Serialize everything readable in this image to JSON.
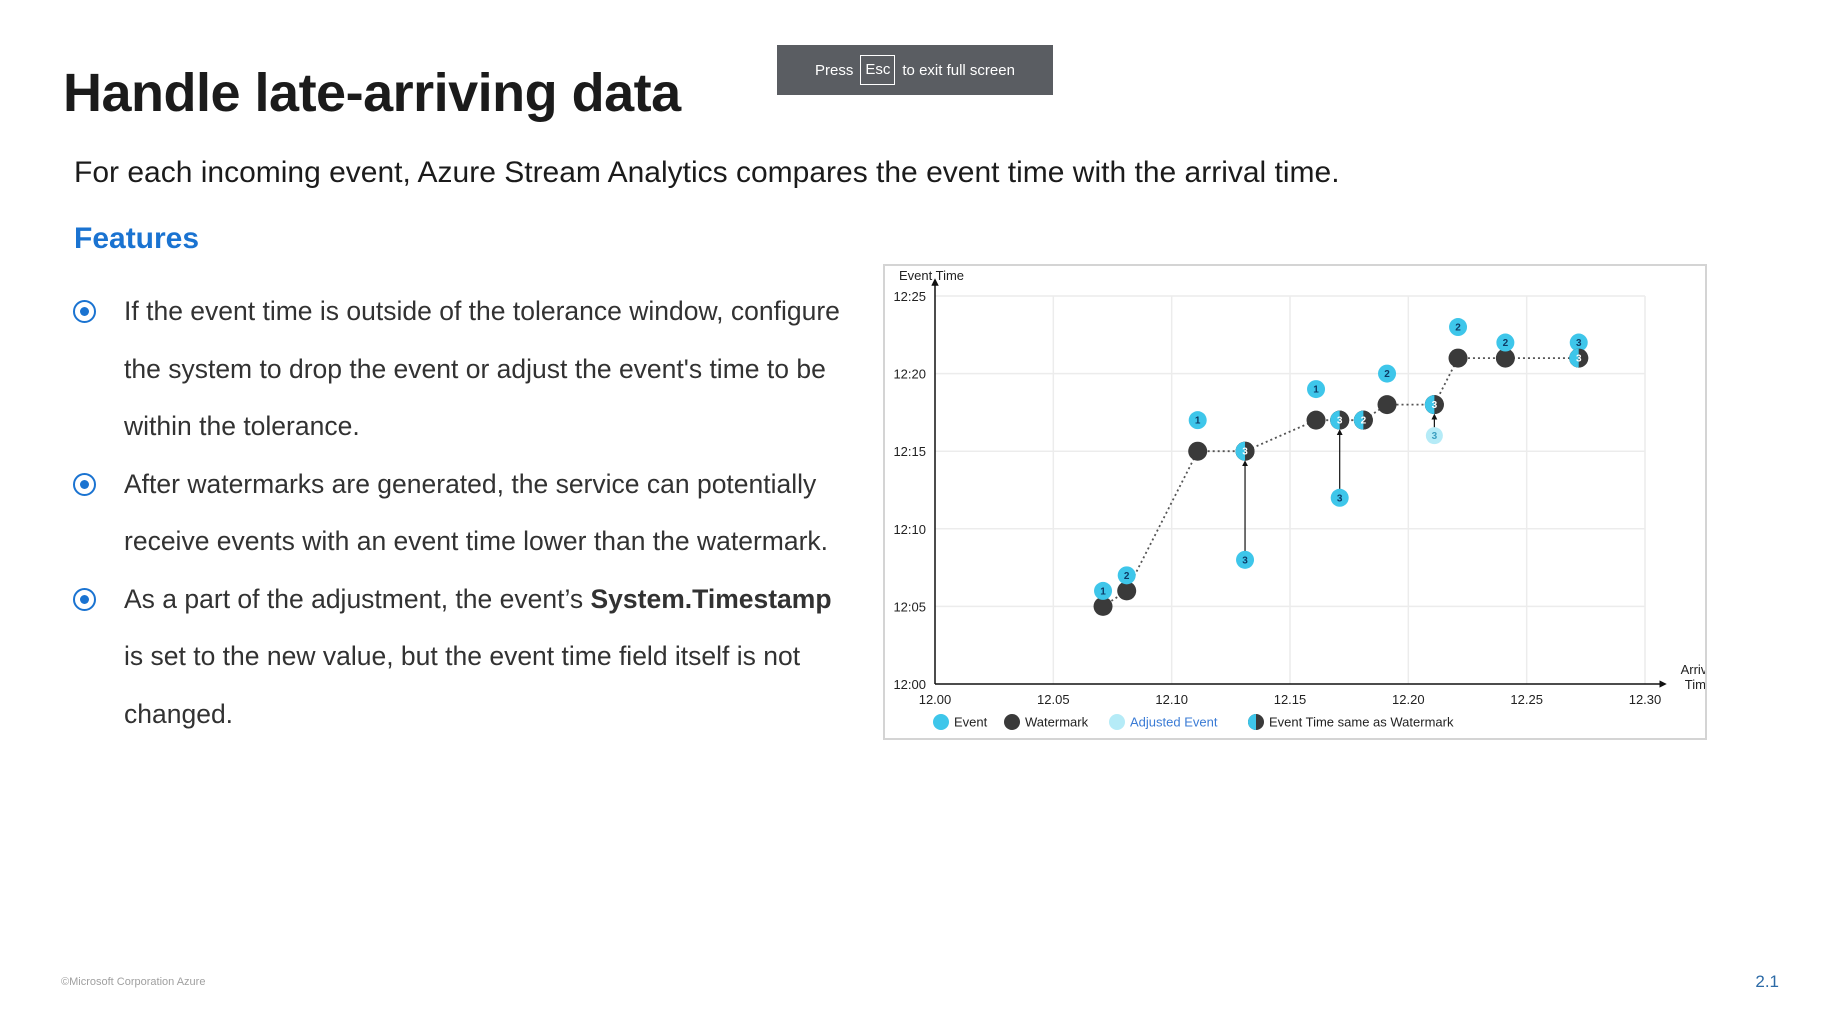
{
  "slide": {
    "title": "Handle late-arriving data",
    "subtitle": "For each incoming event, Azure Stream Analytics compares the event time with the arrival time.",
    "section_heading": "Features",
    "bullets": [
      {
        "text": "If the event time is outside of the tolerance window, configure the system to drop the event or adjust the event's time to be within the tolerance."
      },
      {
        "text": "After watermarks are generated, the service can potentially receive events with an event time lower than the watermark."
      },
      {
        "pre": "As a part of the adjustment, the event’s ",
        "bold": "System.Timestamp",
        "post": " is set to the new value, but the event time field itself is not changed."
      }
    ],
    "footer": "©Microsoft Corporation Azure",
    "page_number": "2.1"
  },
  "toast": {
    "press": "Press",
    "key": "Esc",
    "message": "to exit full screen"
  },
  "colors": {
    "accent": "#1a73d1",
    "event": "#3ec6ea",
    "watermark": "#3a3a3a",
    "adjusted_event": "#b5ebf7",
    "toast_bg": "#5a5d62"
  },
  "chart_data": {
    "type": "scatter",
    "xlabel": "Arrival Time",
    "ylabel": "Event Time",
    "x_ticks": [
      "12.00",
      "12.05",
      "12.10",
      "12.15",
      "12.20",
      "12.25",
      "12.30"
    ],
    "y_ticks": [
      "12:00",
      "12:05",
      "12:10",
      "12:15",
      "12:20",
      "12:25"
    ],
    "xlim": [
      0,
      30
    ],
    "ylim": [
      0,
      25
    ],
    "grid": true,
    "legend": [
      "Event",
      "Watermark",
      "Adjusted Event",
      "Event Time same as Watermark"
    ],
    "legend_position": "bottom",
    "series": [
      {
        "name": "Watermark",
        "points": [
          {
            "x": 7.1,
            "y": 5.0
          },
          {
            "x": 8.1,
            "y": 6.0
          },
          {
            "x": 11.1,
            "y": 15.0
          },
          {
            "x": 13.1,
            "y": 15.0
          },
          {
            "x": 16.1,
            "y": 17.0
          },
          {
            "x": 17.1,
            "y": 17.0
          },
          {
            "x": 18.1,
            "y": 17.0
          },
          {
            "x": 19.1,
            "y": 18.0
          },
          {
            "x": 21.1,
            "y": 18.0
          },
          {
            "x": 22.1,
            "y": 21.0
          },
          {
            "x": 24.1,
            "y": 21.0
          },
          {
            "x": 27.2,
            "y": 21.0
          }
        ]
      },
      {
        "name": "Event",
        "points": [
          {
            "x": 7.1,
            "y": 6.0,
            "label": "1"
          },
          {
            "x": 8.1,
            "y": 7.0,
            "label": "2"
          },
          {
            "x": 11.1,
            "y": 17.0,
            "label": "1"
          },
          {
            "x": 13.1,
            "y": 8.0,
            "label": "3"
          },
          {
            "x": 16.1,
            "y": 19.0,
            "label": "1"
          },
          {
            "x": 19.1,
            "y": 20.0,
            "label": "2"
          },
          {
            "x": 17.1,
            "y": 12.0,
            "label": "3"
          },
          {
            "x": 22.1,
            "y": 23.0,
            "label": "2"
          },
          {
            "x": 24.1,
            "y": 22.0,
            "label": "2"
          },
          {
            "x": 27.2,
            "y": 22.0,
            "label": "3"
          }
        ]
      },
      {
        "name": "Adjusted Event",
        "points": [
          {
            "x": 21.1,
            "y": 16.0,
            "label": "3"
          }
        ]
      },
      {
        "name": "Event Time same as Watermark",
        "points": [
          {
            "x": 13.1,
            "y": 15.0,
            "label": "3"
          },
          {
            "x": 17.1,
            "y": 17.0,
            "label": "3"
          },
          {
            "x": 18.1,
            "y": 17.0,
            "label": "2"
          },
          {
            "x": 21.1,
            "y": 18.0,
            "label": "3"
          },
          {
            "x": 27.2,
            "y": 21.0,
            "label": "3"
          }
        ]
      }
    ],
    "adjustments": [
      {
        "x": 13.1,
        "from": 8.0,
        "to": 15.0
      },
      {
        "x": 17.1,
        "from": 12.0,
        "to": 17.0
      },
      {
        "x": 21.1,
        "from": 16.0,
        "to": 18.0
      },
      {
        "x": 27.2,
        "from": 21.0,
        "to": 22.0
      }
    ]
  }
}
